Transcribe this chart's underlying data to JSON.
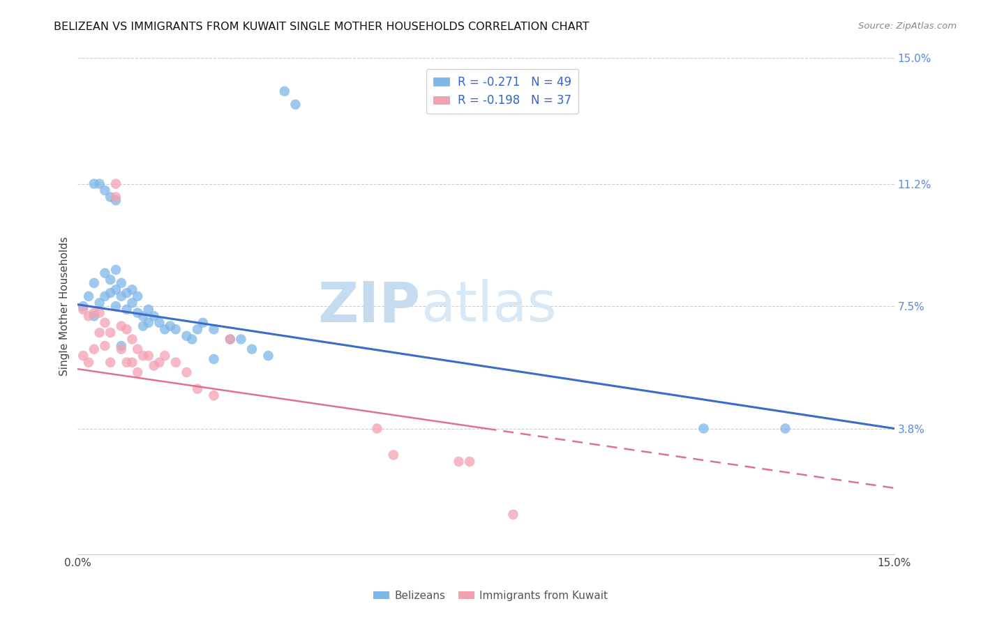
{
  "title": "BELIZEAN VS IMMIGRANTS FROM KUWAIT SINGLE MOTHER HOUSEHOLDS CORRELATION CHART",
  "source": "Source: ZipAtlas.com",
  "ylabel": "Single Mother Households",
  "belizean_color": "#7EB6E8",
  "kuwait_color": "#F4A0B0",
  "belizean_line_color": "#3B6CC9",
  "kuwait_line_color": "#E07090",
  "watermark_text": "ZIPatlas",
  "watermark_color": "#D8E8F5",
  "legend_R_belizean": "-0.271",
  "legend_N_belizean": "49",
  "legend_R_kuwait": "-0.198",
  "legend_N_kuwait": "37",
  "xlim": [
    0.0,
    0.15
  ],
  "ylim": [
    0.0,
    0.15
  ],
  "bel_line_x": [
    0.0,
    0.15
  ],
  "bel_line_y": [
    0.0755,
    0.038
  ],
  "kuw_line_x": [
    0.0,
    0.15
  ],
  "kuw_line_y": [
    0.056,
    0.02
  ],
  "belizean_x": [
    0.001,
    0.002,
    0.003,
    0.003,
    0.004,
    0.005,
    0.005,
    0.006,
    0.006,
    0.007,
    0.007,
    0.007,
    0.008,
    0.008,
    0.009,
    0.009,
    0.01,
    0.01,
    0.011,
    0.011,
    0.012,
    0.012,
    0.013,
    0.013,
    0.014,
    0.015,
    0.016,
    0.017,
    0.018,
    0.02,
    0.021,
    0.022,
    0.023,
    0.025,
    0.028,
    0.03,
    0.032,
    0.035,
    0.038,
    0.04,
    0.003,
    0.004,
    0.005,
    0.006,
    0.007,
    0.008,
    0.025,
    0.115,
    0.13
  ],
  "belizean_y": [
    0.075,
    0.078,
    0.082,
    0.072,
    0.076,
    0.085,
    0.078,
    0.083,
    0.079,
    0.086,
    0.08,
    0.075,
    0.082,
    0.078,
    0.079,
    0.074,
    0.08,
    0.076,
    0.078,
    0.073,
    0.072,
    0.069,
    0.074,
    0.07,
    0.072,
    0.07,
    0.068,
    0.069,
    0.068,
    0.066,
    0.065,
    0.068,
    0.07,
    0.068,
    0.065,
    0.065,
    0.062,
    0.06,
    0.14,
    0.136,
    0.112,
    0.112,
    0.11,
    0.108,
    0.107,
    0.063,
    0.059,
    0.038,
    0.038
  ],
  "kuwait_x": [
    0.001,
    0.001,
    0.002,
    0.002,
    0.003,
    0.003,
    0.004,
    0.004,
    0.005,
    0.005,
    0.006,
    0.006,
    0.007,
    0.007,
    0.008,
    0.008,
    0.009,
    0.009,
    0.01,
    0.01,
    0.011,
    0.011,
    0.012,
    0.013,
    0.014,
    0.015,
    0.016,
    0.018,
    0.02,
    0.022,
    0.025,
    0.028,
    0.055,
    0.058,
    0.07,
    0.072,
    0.08
  ],
  "kuwait_y": [
    0.074,
    0.06,
    0.072,
    0.058,
    0.073,
    0.062,
    0.073,
    0.067,
    0.07,
    0.063,
    0.067,
    0.058,
    0.112,
    0.108,
    0.069,
    0.062,
    0.068,
    0.058,
    0.065,
    0.058,
    0.062,
    0.055,
    0.06,
    0.06,
    0.057,
    0.058,
    0.06,
    0.058,
    0.055,
    0.05,
    0.048,
    0.065,
    0.038,
    0.03,
    0.028,
    0.028,
    0.012
  ]
}
